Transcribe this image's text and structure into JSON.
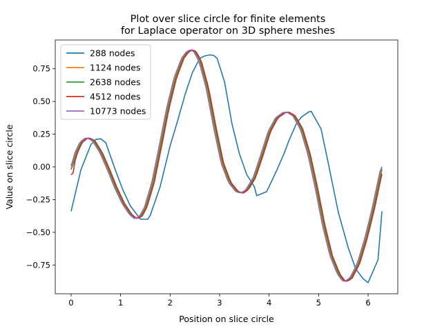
{
  "chart_data": {
    "type": "line",
    "title_line1": "Plot over slice circle for finite elements",
    "title_line2": "for Laplace operator on 3D sphere meshes",
    "xlabel": "Position on slice circle",
    "ylabel": "Value on slice circle",
    "xlim": [
      -0.32,
      6.6
    ],
    "ylim": [
      -0.97,
      0.97
    ],
    "xticks": [
      0,
      1,
      2,
      3,
      4,
      5,
      6
    ],
    "yticks": [
      -0.75,
      -0.5,
      -0.25,
      0.0,
      0.25,
      0.5,
      0.75
    ],
    "ytick_labels": [
      "−0.75",
      "−0.50",
      "−0.25",
      "0.00",
      "0.25",
      "0.50",
      "0.75"
    ],
    "xtick_labels": [
      "0",
      "1",
      "2",
      "3",
      "4",
      "5",
      "6"
    ],
    "legend": {
      "placement": "top-left"
    },
    "series": [
      {
        "name": "288 nodes",
        "color": "#1f77b4",
        "points": [
          [
            0.0,
            -0.34
          ],
          [
            0.2,
            -0.02
          ],
          [
            0.4,
            0.17
          ],
          [
            0.5,
            0.21
          ],
          [
            0.6,
            0.215
          ],
          [
            0.7,
            0.185
          ],
          [
            0.9,
            -0.03
          ],
          [
            1.05,
            -0.18
          ],
          [
            1.2,
            -0.3
          ],
          [
            1.4,
            -0.4
          ],
          [
            1.55,
            -0.4
          ],
          [
            1.6,
            -0.37
          ],
          [
            1.8,
            -0.15
          ],
          [
            2.0,
            0.16
          ],
          [
            2.15,
            0.35
          ],
          [
            2.3,
            0.55
          ],
          [
            2.45,
            0.72
          ],
          [
            2.6,
            0.83
          ],
          [
            2.7,
            0.848
          ],
          [
            2.8,
            0.856
          ],
          [
            2.88,
            0.852
          ],
          [
            2.95,
            0.83
          ],
          [
            3.1,
            0.65
          ],
          [
            3.25,
            0.33
          ],
          [
            3.4,
            0.1
          ],
          [
            3.55,
            -0.06
          ],
          [
            3.7,
            -0.15
          ],
          [
            3.75,
            -0.22
          ],
          [
            3.95,
            -0.19
          ],
          [
            4.15,
            -0.03
          ],
          [
            4.3,
            0.1
          ],
          [
            4.4,
            0.2
          ],
          [
            4.55,
            0.33
          ],
          [
            4.65,
            0.38
          ],
          [
            4.8,
            0.42
          ],
          [
            4.85,
            0.425
          ],
          [
            5.05,
            0.29
          ],
          [
            5.2,
            0.02
          ],
          [
            5.4,
            -0.35
          ],
          [
            5.6,
            -0.62
          ],
          [
            5.75,
            -0.78
          ],
          [
            5.9,
            -0.855
          ],
          [
            6.0,
            -0.885
          ],
          [
            6.2,
            -0.71
          ],
          [
            6.28,
            -0.34
          ]
        ]
      },
      {
        "name": "1124 nodes",
        "color": "#ff7f0e",
        "phase": 0.0,
        "offset": -0.005
      },
      {
        "name": "2638 nodes",
        "color": "#2ca02c",
        "phase": 0.01,
        "offset": -0.01
      },
      {
        "name": "4512 nodes",
        "color": "#d62728",
        "phase": 0.03,
        "offset": -0.04
      },
      {
        "name": "10773 nodes",
        "color": "#9467bd",
        "phase": -0.02,
        "offset": 0.0
      }
    ],
    "fine_curve_points": [
      [
        0.0,
        -0.02
      ],
      [
        0.1,
        0.11
      ],
      [
        0.2,
        0.19
      ],
      [
        0.3,
        0.218
      ],
      [
        0.35,
        0.22
      ],
      [
        0.45,
        0.2
      ],
      [
        0.6,
        0.11
      ],
      [
        0.75,
        -0.02
      ],
      [
        0.9,
        -0.16
      ],
      [
        1.05,
        -0.28
      ],
      [
        1.2,
        -0.365
      ],
      [
        1.3,
        -0.395
      ],
      [
        1.4,
        -0.38
      ],
      [
        1.5,
        -0.31
      ],
      [
        1.65,
        -0.12
      ],
      [
        1.8,
        0.16
      ],
      [
        1.95,
        0.45
      ],
      [
        2.1,
        0.68
      ],
      [
        2.25,
        0.83
      ],
      [
        2.35,
        0.88
      ],
      [
        2.43,
        0.895
      ],
      [
        2.5,
        0.88
      ],
      [
        2.6,
        0.81
      ],
      [
        2.75,
        0.6
      ],
      [
        2.9,
        0.3
      ],
      [
        3.05,
        0.03
      ],
      [
        3.2,
        -0.12
      ],
      [
        3.35,
        -0.19
      ],
      [
        3.45,
        -0.2
      ],
      [
        3.55,
        -0.175
      ],
      [
        3.7,
        -0.08
      ],
      [
        3.85,
        0.09
      ],
      [
        4.0,
        0.27
      ],
      [
        4.15,
        0.375
      ],
      [
        4.3,
        0.415
      ],
      [
        4.38,
        0.418
      ],
      [
        4.5,
        0.39
      ],
      [
        4.65,
        0.29
      ],
      [
        4.8,
        0.1
      ],
      [
        4.95,
        -0.16
      ],
      [
        5.1,
        -0.45
      ],
      [
        5.25,
        -0.68
      ],
      [
        5.4,
        -0.82
      ],
      [
        5.5,
        -0.87
      ],
      [
        5.55,
        -0.875
      ],
      [
        5.65,
        -0.85
      ],
      [
        5.8,
        -0.74
      ],
      [
        5.95,
        -0.55
      ],
      [
        6.1,
        -0.32
      ],
      [
        6.2,
        -0.14
      ],
      [
        6.28,
        0.0
      ]
    ]
  }
}
